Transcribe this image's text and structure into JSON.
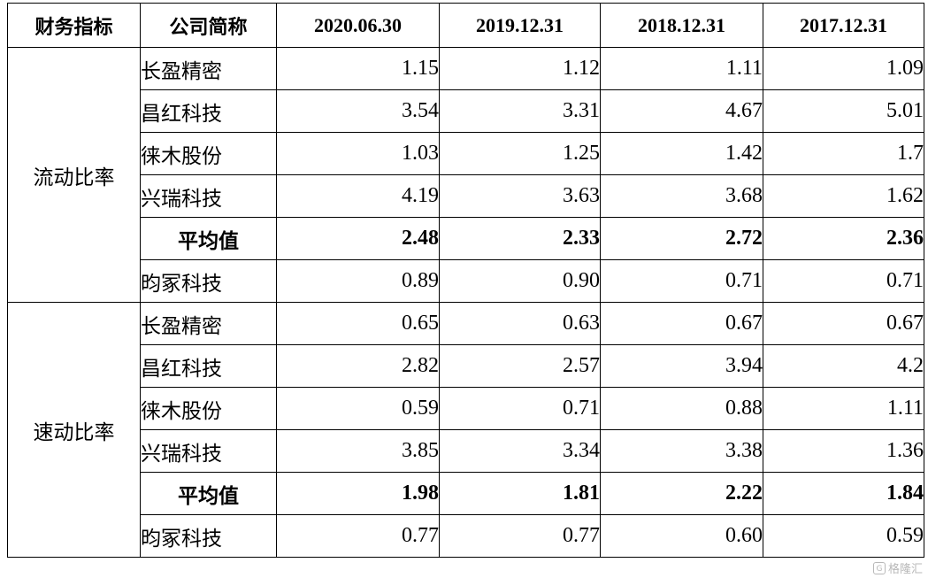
{
  "table": {
    "headers": [
      "财务指标",
      "公司简称",
      "2020.06.30",
      "2019.12.31",
      "2018.12.31",
      "2017.12.31"
    ],
    "groups": [
      {
        "metric": "流动比率",
        "rows": [
          {
            "company": "长盈精密",
            "values": [
              "1.15",
              "1.12",
              "1.11",
              "1.09"
            ]
          },
          {
            "company": "昌红科技",
            "values": [
              "3.54",
              "3.31",
              "4.67",
              "5.01"
            ]
          },
          {
            "company": "徕木股份",
            "values": [
              "1.03",
              "1.25",
              "1.42",
              "1.7"
            ]
          },
          {
            "company": "兴瑞科技",
            "values": [
              "4.19",
              "3.63",
              "3.68",
              "1.62"
            ]
          },
          {
            "company": "平均值",
            "values": [
              "2.48",
              "2.33",
              "2.72",
              "2.36"
            ],
            "is_average": true
          },
          {
            "company": "昀冢科技",
            "values": [
              "0.89",
              "0.90",
              "0.71",
              "0.71"
            ]
          }
        ]
      },
      {
        "metric": "速动比率",
        "rows": [
          {
            "company": "长盈精密",
            "values": [
              "0.65",
              "0.63",
              "0.67",
              "0.67"
            ]
          },
          {
            "company": "昌红科技",
            "values": [
              "2.82",
              "2.57",
              "3.94",
              "4.2"
            ]
          },
          {
            "company": "徕木股份",
            "values": [
              "0.59",
              "0.71",
              "0.88",
              "1.11"
            ]
          },
          {
            "company": "兴瑞科技",
            "values": [
              "3.85",
              "3.34",
              "3.38",
              "1.36"
            ]
          },
          {
            "company": "平均值",
            "values": [
              "1.98",
              "1.81",
              "2.22",
              "1.84"
            ],
            "is_average": true
          },
          {
            "company": "昀冢科技",
            "values": [
              "0.77",
              "0.77",
              "0.60",
              "0.59"
            ]
          }
        ]
      }
    ]
  },
  "watermark": {
    "mark": "G",
    "text": "格隆汇"
  }
}
